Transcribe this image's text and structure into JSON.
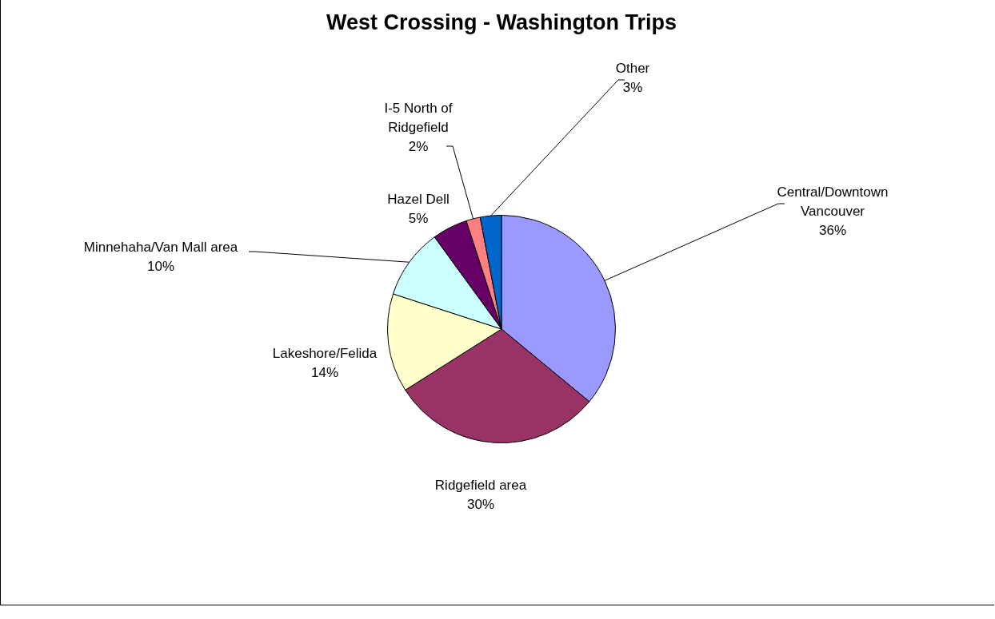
{
  "chart_data": {
    "type": "pie",
    "title": "West Crossing - Washington Trips",
    "categories": [
      "Central/Downtown Vancouver",
      "Ridgefield area",
      "Lakeshore/Felida",
      "Minnehaha/Van Mall area",
      "Hazel Dell",
      "I-5 North of Ridgefield",
      "Other"
    ],
    "values": [
      36,
      30,
      14,
      10,
      5,
      2,
      3
    ],
    "colors": [
      "#9999ff",
      "#993366",
      "#ffffcc",
      "#ccffff",
      "#660066",
      "#ff8080",
      "#0066cc"
    ],
    "value_labels": [
      "36%",
      "30%",
      "14%",
      "10%",
      "5%",
      "2%",
      "3%"
    ],
    "legend": false
  }
}
